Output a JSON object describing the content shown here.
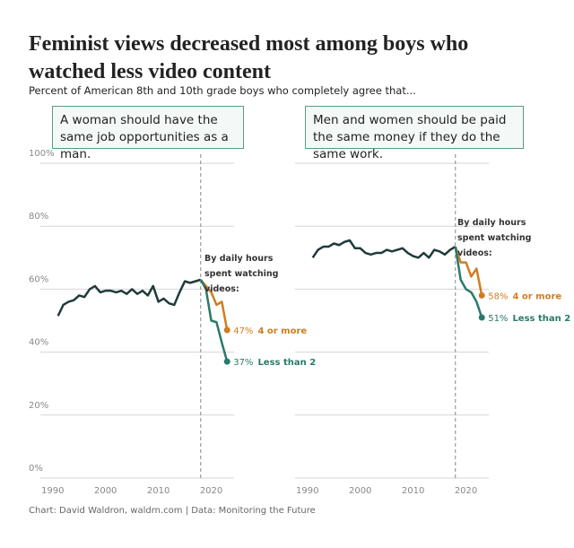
{
  "title": "Feminist views decreased most among boys who watched less video content",
  "subtitle": "Percent of American 8th and 10th grade boys who completely agree that...",
  "footer": "Chart: David Waldron, waldrn.com | Data: Monitoring the Future",
  "chart_data": [
    {
      "type": "line",
      "heading": "A woman should have the same job opportunities as a man.",
      "annotation": "By daily hours spent watching videos:",
      "x": [
        1991,
        1992,
        1993,
        1994,
        1995,
        1996,
        1997,
        1998,
        1999,
        2000,
        2001,
        2002,
        2003,
        2004,
        2005,
        2006,
        2007,
        2008,
        2009,
        2010,
        2011,
        2012,
        2013,
        2014,
        2015,
        2016,
        2017,
        2018,
        2019,
        2020,
        2021,
        2022,
        2023
      ],
      "xlim": [
        1988,
        2025
      ],
      "xticks": [
        1990,
        2000,
        2010,
        2020
      ],
      "vline": 2018,
      "ylim": [
        0,
        100
      ],
      "yticks": [
        {
          "value": 0,
          "label": "0%"
        },
        {
          "value": 20,
          "label": "20%"
        },
        {
          "value": 40,
          "label": "40%"
        },
        {
          "value": 60,
          "label": "60%"
        },
        {
          "value": 80,
          "label": "80%"
        },
        {
          "value": 100,
          "label": "100%"
        }
      ],
      "grid": true,
      "series": [
        {
          "color": "#1f3b3a",
          "values": [
            51.5,
            55,
            56,
            56.5,
            58,
            57.5,
            60,
            61,
            59,
            59.5,
            59.5,
            59,
            59.5,
            58.5,
            60,
            58.5,
            59.5,
            58,
            61,
            56,
            57,
            55.5,
            55,
            59,
            62.5,
            62,
            62.5,
            63,
            null,
            null,
            null,
            null,
            null
          ]
        },
        {
          "name": "4 or more",
          "color": "#d07d1f",
          "values": [
            null,
            null,
            null,
            null,
            null,
            null,
            null,
            null,
            null,
            null,
            null,
            null,
            null,
            null,
            null,
            null,
            null,
            null,
            null,
            null,
            null,
            null,
            null,
            null,
            null,
            null,
            null,
            63,
            61,
            59,
            55,
            56,
            47
          ],
          "value_labels": [
            null,
            null,
            null,
            null,
            null,
            null,
            null,
            null,
            null,
            null,
            null,
            null,
            null,
            null,
            null,
            null,
            null,
            null,
            null,
            null,
            null,
            null,
            null,
            null,
            null,
            null,
            null,
            null,
            null,
            null,
            null,
            null,
            "47%"
          ]
        },
        {
          "name": "Less than 2",
          "color": "#2a7a6a",
          "values": [
            null,
            null,
            null,
            null,
            null,
            null,
            null,
            null,
            null,
            null,
            null,
            null,
            null,
            null,
            null,
            null,
            null,
            null,
            null,
            null,
            null,
            null,
            null,
            null,
            null,
            null,
            null,
            63,
            60,
            50,
            49.5,
            43,
            37
          ],
          "value_labels": [
            null,
            null,
            null,
            null,
            null,
            null,
            null,
            null,
            null,
            null,
            null,
            null,
            null,
            null,
            null,
            null,
            null,
            null,
            null,
            null,
            null,
            null,
            null,
            null,
            null,
            null,
            null,
            null,
            null,
            null,
            null,
            null,
            "37%"
          ]
        }
      ]
    },
    {
      "type": "line",
      "heading": "Men and women should be paid the same money if they do the same work.",
      "annotation": "By daily hours spent watching videos:",
      "x": [
        1991,
        1992,
        1993,
        1994,
        1995,
        1996,
        1997,
        1998,
        1999,
        2000,
        2001,
        2002,
        2003,
        2004,
        2005,
        2006,
        2007,
        2008,
        2009,
        2010,
        2011,
        2012,
        2013,
        2014,
        2015,
        2016,
        2017,
        2018,
        2019,
        2020,
        2021,
        2022,
        2023
      ],
      "xlim": [
        1988,
        2025
      ],
      "xticks": [
        1990,
        2000,
        2010,
        2020
      ],
      "vline": 2018,
      "ylim": [
        0,
        100
      ],
      "yticks": [
        0,
        20,
        40,
        60,
        80,
        100
      ],
      "grid": true,
      "series": [
        {
          "color": "#1f3b3a",
          "values": [
            70,
            72.5,
            73.5,
            73.5,
            74.5,
            74,
            75,
            75.5,
            73,
            73,
            71.5,
            71,
            71.5,
            71.5,
            72.5,
            72,
            72.5,
            73,
            71.5,
            70.5,
            70,
            71.5,
            70,
            72.5,
            72,
            71,
            72.5,
            73.5,
            null,
            null,
            null,
            null,
            null
          ]
        },
        {
          "name": "4 or more",
          "color": "#d07d1f",
          "values": [
            null,
            null,
            null,
            null,
            null,
            null,
            null,
            null,
            null,
            null,
            null,
            null,
            null,
            null,
            null,
            null,
            null,
            null,
            null,
            null,
            null,
            null,
            null,
            null,
            null,
            null,
            null,
            73.5,
            68.5,
            68.5,
            64,
            66.5,
            58
          ],
          "value_labels": [
            null,
            null,
            null,
            null,
            null,
            null,
            null,
            null,
            null,
            null,
            null,
            null,
            null,
            null,
            null,
            null,
            null,
            null,
            null,
            null,
            null,
            null,
            null,
            null,
            null,
            null,
            null,
            null,
            null,
            null,
            null,
            null,
            "58%"
          ]
        },
        {
          "name": "Less than 2",
          "color": "#2a7a6a",
          "values": [
            null,
            null,
            null,
            null,
            null,
            null,
            null,
            null,
            null,
            null,
            null,
            null,
            null,
            null,
            null,
            null,
            null,
            null,
            null,
            null,
            null,
            null,
            null,
            null,
            null,
            null,
            null,
            73.5,
            63,
            60,
            59,
            56,
            51
          ],
          "value_labels": [
            null,
            null,
            null,
            null,
            null,
            null,
            null,
            null,
            null,
            null,
            null,
            null,
            null,
            null,
            null,
            null,
            null,
            null,
            null,
            null,
            null,
            null,
            null,
            null,
            null,
            null,
            null,
            null,
            null,
            null,
            null,
            null,
            "51%"
          ]
        }
      ]
    }
  ]
}
